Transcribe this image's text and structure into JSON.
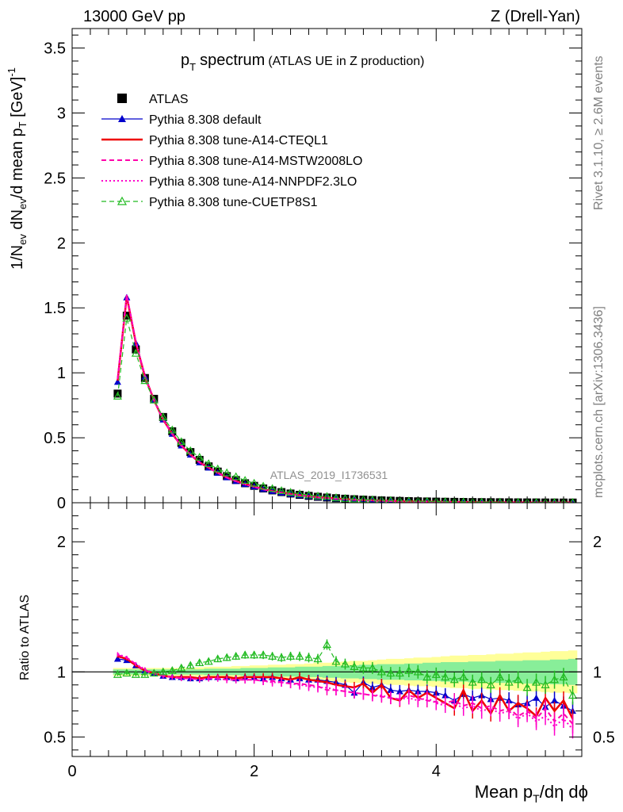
{
  "header": {
    "left": "13000 GeV pp",
    "right": "Z (Drell-Yan)"
  },
  "side_labels": {
    "rivet": "Rivet 3.1.10, ≥ 2.6M events",
    "mcplots": "mcplots.cern.ch [arXiv:1306.3436]"
  },
  "analysis_id": "ATLAS_2019_I1736531",
  "chart_data": [
    {
      "type": "scatter",
      "panel": "main",
      "title_main": "p",
      "title_sub": "T",
      "title_word": "spectrum",
      "title_paren": "(ATLAS UE in Z production)",
      "ylabel_parts": [
        "1/N",
        "ev",
        " dN",
        "ev",
        "/d mean p",
        "T",
        " [GeV]",
        "-1"
      ],
      "xlim": [
        0,
        5.6
      ],
      "ylim": [
        0,
        3.65
      ],
      "yticks": [
        "0",
        "0.5",
        "1",
        "1.5",
        "2",
        "2.5",
        "3",
        "3.5"
      ],
      "yticks_values": [
        0,
        0.5,
        1,
        1.5,
        2,
        2.5,
        3,
        3.5
      ],
      "legend_position": "top-left",
      "x": [
        0.5,
        0.6,
        0.7,
        0.8,
        0.9,
        1.0,
        1.1,
        1.2,
        1.3,
        1.4,
        1.5,
        1.6,
        1.7,
        1.8,
        1.9,
        2.0,
        2.1,
        2.2,
        2.3,
        2.4,
        2.5,
        2.6,
        2.7,
        2.8,
        2.9,
        3.0,
        3.1,
        3.2,
        3.3,
        3.4,
        3.5,
        3.6,
        3.7,
        3.8,
        3.9,
        4.0,
        4.1,
        4.2,
        4.3,
        4.4,
        4.5,
        4.6,
        4.7,
        4.8,
        4.9,
        5.0,
        5.1,
        5.2,
        5.3,
        5.4,
        5.5
      ],
      "series": [
        {
          "name": "ATLAS",
          "color": "#000000",
          "marker": "square",
          "values": [
            0.84,
            1.44,
            1.18,
            0.96,
            0.8,
            0.66,
            0.55,
            0.46,
            0.39,
            0.33,
            0.28,
            0.24,
            0.205,
            0.175,
            0.15,
            0.13,
            0.11,
            0.095,
            0.082,
            0.071,
            0.061,
            0.053,
            0.046,
            0.04,
            0.035,
            0.031,
            0.027,
            0.024,
            0.021,
            0.018,
            0.016,
            0.014,
            0.0125,
            0.011,
            0.0098,
            0.0087,
            0.0077,
            0.0068,
            0.006,
            0.0053,
            0.0047,
            0.0042,
            0.0037,
            0.0033,
            0.0029,
            0.0026,
            0.0023,
            0.002,
            0.0018,
            0.0016,
            0.0014
          ]
        },
        {
          "name": "Pythia 8.308 default",
          "color": "#0000cc",
          "marker": "triangle",
          "values": [
            0.93,
            1.58,
            1.23,
            0.97,
            0.79,
            0.64,
            0.53,
            0.44,
            0.37,
            0.31,
            0.27,
            0.23,
            0.195,
            0.167,
            0.143,
            0.125,
            0.105,
            0.09,
            0.078,
            0.067,
            0.058,
            0.05,
            0.043,
            0.037,
            0.032,
            0.028,
            0.024,
            0.021,
            0.019,
            0.016,
            0.014,
            0.012,
            0.011,
            0.0095,
            0.0083,
            0.0072,
            0.0064,
            0.0055,
            0.0048,
            0.0043,
            0.0038,
            0.0033,
            0.0029,
            0.0026,
            0.0022,
            0.0019,
            0.0017,
            0.0015,
            0.0013,
            0.0012,
            0.001
          ]
        },
        {
          "name": "Pythia 8.308 tune-A14-CTEQL1",
          "color": "#ee0000",
          "marker": "none",
          "values": [
            0.94,
            1.59,
            1.23,
            0.97,
            0.79,
            0.64,
            0.53,
            0.44,
            0.37,
            0.31,
            0.27,
            0.23,
            0.195,
            0.167,
            0.143,
            0.125,
            0.105,
            0.09,
            0.078,
            0.067,
            0.058,
            0.05,
            0.043,
            0.037,
            0.032,
            0.028,
            0.024,
            0.021,
            0.019,
            0.016,
            0.014,
            0.012,
            0.011,
            0.0095,
            0.0083,
            0.0072,
            0.0064,
            0.0055,
            0.0048,
            0.0043,
            0.0038,
            0.0033,
            0.0029,
            0.0026,
            0.0022,
            0.0019,
            0.0017,
            0.0015,
            0.0013,
            0.0012,
            0.001
          ]
        },
        {
          "name": "Pythia 8.308 tune-A14-MSTW2008LO",
          "color": "#ff00aa",
          "marker": "none",
          "values": [
            0.95,
            1.6,
            1.24,
            0.97,
            0.79,
            0.64,
            0.53,
            0.44,
            0.37,
            0.31,
            0.27,
            0.23,
            0.193,
            0.165,
            0.141,
            0.122,
            0.103,
            0.088,
            0.076,
            0.065,
            0.056,
            0.048,
            0.041,
            0.035,
            0.03,
            0.026,
            0.023,
            0.02,
            0.018,
            0.015,
            0.013,
            0.011,
            0.0102,
            0.009,
            0.0078,
            0.0068,
            0.006,
            0.0052,
            0.0045,
            0.004,
            0.0036,
            0.0031,
            0.0027,
            0.0024,
            0.0021,
            0.0018,
            0.0016,
            0.0014,
            0.0012,
            0.0011,
            0.0009
          ]
        },
        {
          "name": "Pythia 8.308 tune-A14-NNPDF2.3LO",
          "color": "#ff00cc",
          "marker": "none",
          "values": [
            0.96,
            1.6,
            1.24,
            0.98,
            0.79,
            0.64,
            0.53,
            0.44,
            0.37,
            0.31,
            0.27,
            0.23,
            0.193,
            0.165,
            0.141,
            0.122,
            0.103,
            0.088,
            0.076,
            0.065,
            0.056,
            0.048,
            0.041,
            0.035,
            0.03,
            0.026,
            0.023,
            0.02,
            0.018,
            0.015,
            0.013,
            0.011,
            0.0102,
            0.009,
            0.0078,
            0.0068,
            0.006,
            0.0052,
            0.0045,
            0.004,
            0.0036,
            0.0031,
            0.0027,
            0.0024,
            0.0021,
            0.0018,
            0.0016,
            0.0014,
            0.0012,
            0.0011,
            0.0009
          ]
        },
        {
          "name": "Pythia 8.308 tune-CUETP8S1",
          "color": "#22bb22",
          "marker": "open-triangle",
          "values": [
            0.82,
            1.42,
            1.15,
            0.94,
            0.79,
            0.66,
            0.56,
            0.47,
            0.4,
            0.35,
            0.3,
            0.26,
            0.23,
            0.2,
            0.172,
            0.15,
            0.127,
            0.109,
            0.093,
            0.08,
            0.069,
            0.06,
            0.051,
            0.048,
            0.038,
            0.032,
            0.028,
            0.025,
            0.022,
            0.019,
            0.017,
            0.015,
            0.013,
            0.012,
            0.0102,
            0.009,
            0.0079,
            0.007,
            0.0062,
            0.0055,
            0.0049,
            0.0043,
            0.0038,
            0.0034,
            0.003,
            0.0027,
            0.0024,
            0.0021,
            0.0019,
            0.0016,
            0.0014
          ]
        }
      ]
    },
    {
      "type": "line",
      "panel": "ratio",
      "ylabel": "Ratio to ATLAS",
      "xlabel_parts": [
        "Mean p",
        "T",
        "/dη dϕ"
      ],
      "xlim": [
        0,
        5.6
      ],
      "ylim": [
        0.35,
        2.3
      ],
      "xticks": [
        "0",
        "2",
        "4"
      ],
      "xticks_values": [
        0,
        2,
        4
      ],
      "yticks": [
        "0.5",
        "1",
        "2"
      ],
      "yticks_values": [
        0.5,
        1,
        2
      ],
      "reference_line": 1,
      "band_inner_halfwidth": [
        0.02,
        0.02,
        0.02,
        0.02,
        0.02,
        0.02,
        0.02,
        0.02,
        0.02,
        0.02,
        0.025,
        0.025,
        0.025,
        0.025,
        0.03,
        0.03,
        0.03,
        0.035,
        0.035,
        0.035,
        0.04,
        0.04,
        0.04,
        0.045,
        0.045,
        0.05,
        0.05,
        0.055,
        0.055,
        0.06,
        0.06,
        0.06,
        0.065,
        0.065,
        0.07,
        0.07,
        0.075,
        0.075,
        0.075,
        0.08,
        0.08,
        0.08,
        0.085,
        0.085,
        0.085,
        0.09,
        0.09,
        0.09,
        0.095,
        0.095,
        0.1
      ],
      "band_outer_halfwidth": [
        0.03,
        0.03,
        0.03,
        0.03,
        0.03,
        0.03,
        0.03,
        0.03,
        0.03,
        0.035,
        0.04,
        0.04,
        0.04,
        0.045,
        0.045,
        0.05,
        0.05,
        0.055,
        0.055,
        0.06,
        0.06,
        0.065,
        0.07,
        0.07,
        0.075,
        0.08,
        0.085,
        0.085,
        0.09,
        0.095,
        0.1,
        0.1,
        0.105,
        0.11,
        0.11,
        0.115,
        0.12,
        0.125,
        0.125,
        0.13,
        0.13,
        0.135,
        0.14,
        0.14,
        0.145,
        0.15,
        0.15,
        0.155,
        0.16,
        0.16,
        0.165
      ],
      "band_colors": {
        "inner": "#88ee99",
        "outer": "#ffff99"
      },
      "series": [
        {
          "name": "Pythia 8.308 default",
          "color": "#0000cc",
          "marker": "triangle",
          "values": [
            1.1,
            1.09,
            1.05,
            1.01,
            0.99,
            0.97,
            0.96,
            0.96,
            0.95,
            0.95,
            0.96,
            0.96,
            0.96,
            0.95,
            0.96,
            0.96,
            0.95,
            0.96,
            0.95,
            0.94,
            0.95,
            0.94,
            0.94,
            0.93,
            0.92,
            0.9,
            0.84,
            0.92,
            0.88,
            0.9,
            0.86,
            0.85,
            0.86,
            0.85,
            0.85,
            0.84,
            0.82,
            0.78,
            0.83,
            0.8,
            0.82,
            0.79,
            0.8,
            0.78,
            0.75,
            0.76,
            0.8,
            0.73,
            0.78,
            0.74,
            0.7
          ]
        },
        {
          "name": "Pythia 8.308 tune-A14-CTEQL1",
          "color": "#ee0000",
          "marker": "none",
          "values": [
            1.12,
            1.1,
            1.05,
            1.01,
            0.99,
            0.97,
            0.96,
            0.96,
            0.96,
            0.95,
            0.96,
            0.96,
            0.96,
            0.95,
            0.96,
            0.96,
            0.96,
            0.96,
            0.95,
            0.94,
            0.96,
            0.94,
            0.93,
            0.92,
            0.9,
            0.89,
            0.88,
            0.91,
            0.84,
            0.9,
            0.8,
            0.78,
            0.86,
            0.8,
            0.84,
            0.8,
            0.76,
            0.72,
            0.86,
            0.7,
            0.78,
            0.68,
            0.82,
            0.7,
            0.76,
            0.72,
            0.66,
            0.8,
            0.7,
            0.78,
            0.64
          ]
        },
        {
          "name": "Pythia 8.308 tune-A14-MSTW2008LO",
          "color": "#ff00aa",
          "marker": "none",
          "values": [
            1.13,
            1.11,
            1.06,
            1.01,
            0.99,
            0.97,
            0.96,
            0.95,
            0.95,
            0.94,
            0.95,
            0.95,
            0.94,
            0.94,
            0.94,
            0.94,
            0.93,
            0.93,
            0.92,
            0.91,
            0.91,
            0.9,
            0.89,
            0.86,
            0.86,
            0.85,
            0.84,
            0.83,
            0.82,
            0.81,
            0.8,
            0.79,
            0.82,
            0.8,
            0.78,
            0.77,
            0.76,
            0.78,
            0.74,
            0.76,
            0.72,
            0.74,
            0.7,
            0.72,
            0.66,
            0.7,
            0.64,
            0.72,
            0.62,
            0.68,
            0.6
          ]
        },
        {
          "name": "Pythia 8.308 tune-A14-NNPDF2.3LO",
          "color": "#ff00cc",
          "marker": "none",
          "values": [
            1.14,
            1.11,
            1.06,
            1.02,
            0.99,
            0.97,
            0.96,
            0.95,
            0.95,
            0.94,
            0.95,
            0.95,
            0.94,
            0.94,
            0.94,
            0.94,
            0.93,
            0.92,
            0.92,
            0.91,
            0.9,
            0.89,
            0.88,
            0.88,
            0.86,
            0.85,
            0.84,
            0.83,
            0.82,
            0.82,
            0.8,
            0.79,
            0.8,
            0.78,
            0.8,
            0.76,
            0.74,
            0.76,
            0.72,
            0.74,
            0.7,
            0.72,
            0.68,
            0.7,
            0.64,
            0.68,
            0.62,
            0.66,
            0.58,
            0.64,
            0.56
          ]
        },
        {
          "name": "Pythia 8.308 tune-CUETP8S1",
          "color": "#22bb22",
          "marker": "open-triangle",
          "values": [
            0.98,
            0.99,
            0.98,
            0.98,
            0.99,
            1.0,
            1.01,
            1.03,
            1.05,
            1.07,
            1.08,
            1.1,
            1.11,
            1.12,
            1.13,
            1.13,
            1.13,
            1.12,
            1.11,
            1.12,
            1.12,
            1.11,
            1.1,
            1.21,
            1.08,
            1.06,
            1.04,
            1.03,
            1.03,
            1.0,
            0.99,
            0.99,
            1.01,
            1.0,
            0.96,
            0.98,
            0.96,
            0.94,
            0.96,
            0.92,
            0.94,
            0.9,
            0.96,
            0.92,
            0.94,
            0.88,
            0.92,
            0.9,
            0.94,
            0.96,
            0.82
          ]
        }
      ]
    }
  ]
}
